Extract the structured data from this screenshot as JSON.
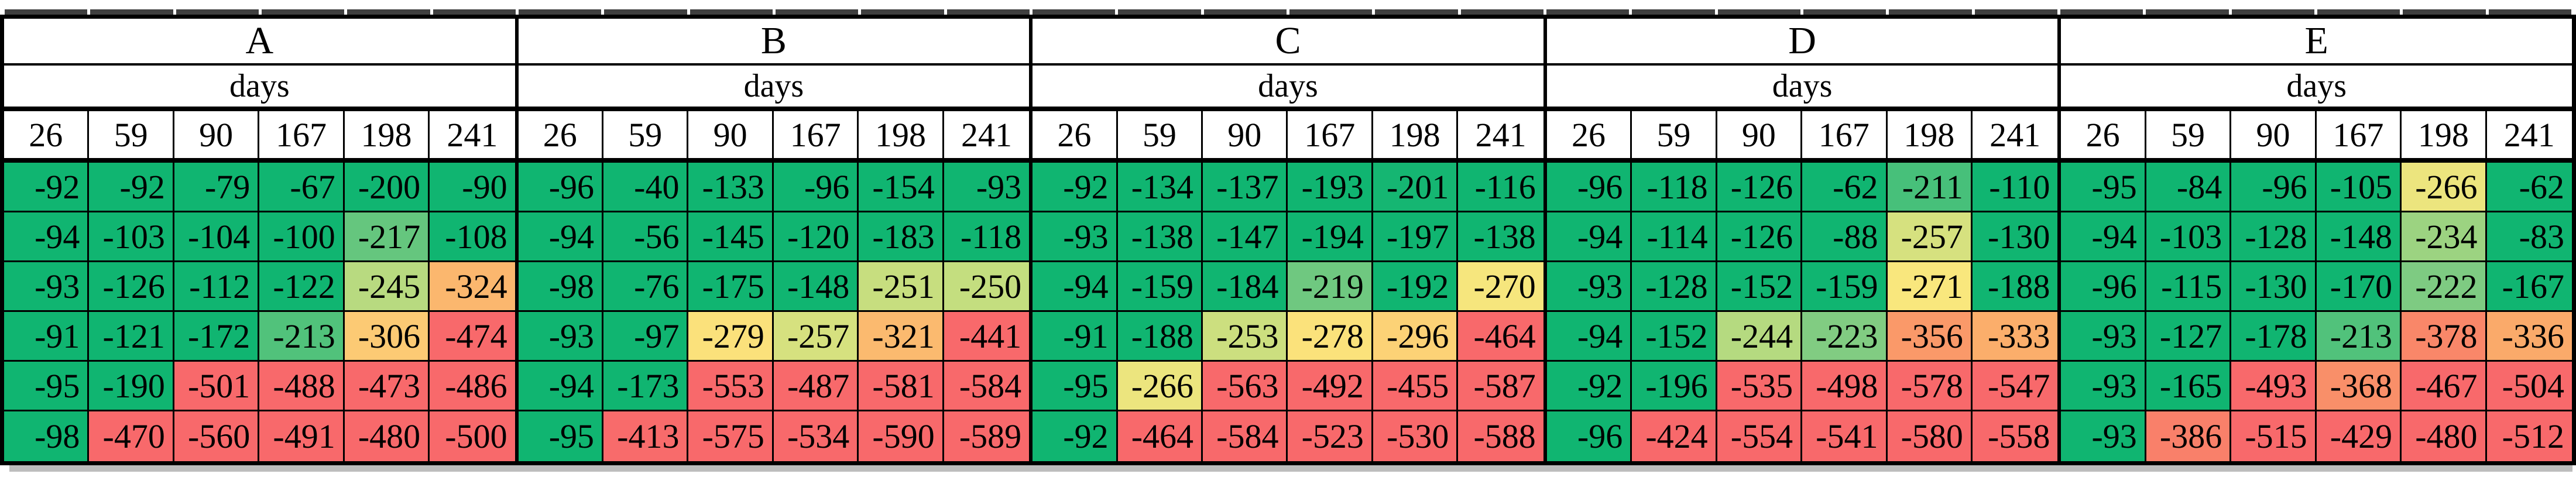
{
  "colors": {
    "border": "#000000",
    "background": "#FFFFFF",
    "text": "#000000",
    "tick_bar": "#3F3F3F",
    "shadow": "#BDBDBD"
  },
  "chart_data": {
    "type": "heatmap",
    "subheader_label": "days",
    "columns": [
      "26",
      "59",
      "90",
      "167",
      "198",
      "241"
    ],
    "series": [
      {
        "name": "A",
        "rows": [
          [
            -92,
            -92,
            -79,
            -67,
            -200,
            -90
          ],
          [
            -94,
            -103,
            -104,
            -100,
            -217,
            -108
          ],
          [
            -93,
            -126,
            -112,
            -122,
            -245,
            -324
          ],
          [
            -91,
            -121,
            -172,
            -213,
            -306,
            -474
          ],
          [
            -95,
            -190,
            -501,
            -488,
            -473,
            -486
          ],
          [
            -98,
            -470,
            -560,
            -491,
            -480,
            -500
          ]
        ]
      },
      {
        "name": "B",
        "rows": [
          [
            -96,
            -40,
            -133,
            -96,
            -154,
            -93
          ],
          [
            -94,
            -56,
            -145,
            -120,
            -183,
            -118
          ],
          [
            -98,
            -76,
            -175,
            -148,
            -251,
            -250
          ],
          [
            -93,
            -97,
            -279,
            -257,
            -321,
            -441
          ],
          [
            -94,
            -173,
            -553,
            -487,
            -581,
            -584
          ],
          [
            -95,
            -413,
            -575,
            -534,
            -590,
            -589
          ]
        ]
      },
      {
        "name": "C",
        "rows": [
          [
            -92,
            -134,
            -137,
            -193,
            -201,
            -116
          ],
          [
            -93,
            -138,
            -147,
            -194,
            -197,
            -138
          ],
          [
            -94,
            -159,
            -184,
            -219,
            -192,
            -270
          ],
          [
            -91,
            -188,
            -253,
            -278,
            -296,
            -464
          ],
          [
            -95,
            -266,
            -563,
            -492,
            -455,
            -587
          ],
          [
            -92,
            -464,
            -584,
            -523,
            -530,
            -588
          ]
        ]
      },
      {
        "name": "D",
        "rows": [
          [
            -96,
            -118,
            -126,
            -62,
            -211,
            -110
          ],
          [
            -94,
            -114,
            -126,
            -88,
            -257,
            -130
          ],
          [
            -93,
            -128,
            -152,
            -159,
            -271,
            -188
          ],
          [
            -94,
            -152,
            -244,
            -223,
            -356,
            -333
          ],
          [
            -92,
            -196,
            -535,
            -498,
            -578,
            -547
          ],
          [
            -96,
            -424,
            -554,
            -541,
            -580,
            -558
          ]
        ]
      },
      {
        "name": "E",
        "rows": [
          [
            -95,
            -84,
            -96,
            -105,
            -266,
            -62
          ],
          [
            -94,
            -103,
            -128,
            -148,
            -234,
            -83
          ],
          [
            -96,
            -115,
            -130,
            -170,
            -222,
            -167
          ],
          [
            -93,
            -127,
            -178,
            -213,
            -378,
            -336
          ],
          [
            -93,
            -165,
            -493,
            -368,
            -467,
            -504
          ],
          [
            -93,
            -386,
            -515,
            -429,
            -480,
            -512
          ]
        ]
      }
    ],
    "color_scale": {
      "description": "green = closer to 0, yellow = mid, red = most negative",
      "stops": [
        {
          "value": -200,
          "color": "#10B571"
        },
        {
          "value": -222,
          "color": "#7ECB82"
        },
        {
          "value": -252,
          "color": "#C9DF7F"
        },
        {
          "value": -272,
          "color": "#FBE77D"
        },
        {
          "value": -308,
          "color": "#FCC873"
        },
        {
          "value": -342,
          "color": "#FAA468"
        },
        {
          "value": -415,
          "color": "#F8696B"
        }
      ]
    }
  }
}
